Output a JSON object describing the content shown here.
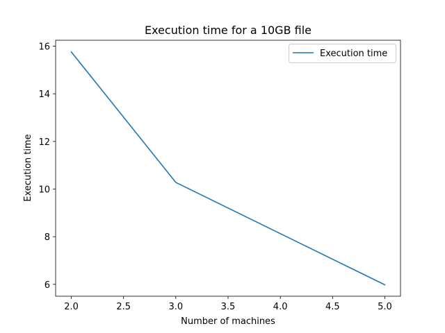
{
  "chart_data": {
    "type": "line",
    "title": "Execution time for a 10GB file",
    "xlabel": "Number of machines",
    "ylabel": "Execution time",
    "xlim": [
      1.85,
      5.15
    ],
    "ylim": [
      5.5,
      16.25
    ],
    "x_ticks": [
      2.0,
      2.5,
      3.0,
      3.5,
      4.0,
      4.5,
      5.0
    ],
    "x_tick_labels": [
      "2.0",
      "2.5",
      "3.0",
      "3.5",
      "4.0",
      "4.5",
      "5.0"
    ],
    "y_ticks": [
      6,
      8,
      10,
      12,
      14,
      16
    ],
    "y_tick_labels": [
      "6",
      "8",
      "10",
      "12",
      "14",
      "16"
    ],
    "grid": false,
    "legend_position": "upper right",
    "series": [
      {
        "name": "Execution time",
        "color": "#1f77b4",
        "x": [
          2,
          3,
          5
        ],
        "y": [
          15.76,
          10.28,
          5.98
        ]
      }
    ]
  }
}
